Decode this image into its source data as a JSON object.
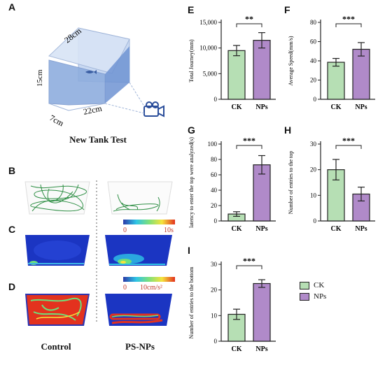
{
  "panel_letters": [
    "A",
    "B",
    "C",
    "D",
    "E",
    "F",
    "G",
    "H",
    "I"
  ],
  "tank": {
    "dim_length": "28cm",
    "dim_bottom": "22cm",
    "dim_height": "15cm",
    "dim_depth": "7cm",
    "title": "New Tank Test"
  },
  "groups": {
    "control": "Control",
    "treated": "PS-NPs"
  },
  "colorbar_time": {
    "min": "0",
    "max": "10s"
  },
  "colorbar_speed": {
    "min": "0",
    "max": "10cm/s²"
  },
  "legend": {
    "items": [
      {
        "label": "CK",
        "color": "#b6dfb4"
      },
      {
        "label": "NPs",
        "color": "#b08ac9"
      }
    ]
  },
  "colors": {
    "ck": "#b6dfb4",
    "nps": "#b08ac9",
    "edge": "#222222"
  },
  "chart_data": [
    {
      "id": "E",
      "type": "bar",
      "categories": [
        "CK",
        "NPs"
      ],
      "values": [
        9500,
        11500
      ],
      "errors": [
        1000,
        1500
      ],
      "ylabel": "Total Journey(mm)",
      "ylim": [
        0,
        15000
      ],
      "yticks": [
        0,
        5000,
        10000,
        15000
      ],
      "ytick_labels": [
        "0",
        "5,000",
        "10,000",
        "15,000"
      ],
      "significance": "**"
    },
    {
      "id": "F",
      "type": "bar",
      "categories": [
        "CK",
        "NPs"
      ],
      "values": [
        38.5,
        52
      ],
      "errors": [
        4,
        7
      ],
      "ylabel": "Average Speed(mm/s)",
      "ylim": [
        0,
        80
      ],
      "yticks": [
        0,
        20,
        40,
        60,
        80
      ],
      "ytick_labels": [
        "0",
        "20",
        "40",
        "60",
        "80"
      ],
      "significance": "***"
    },
    {
      "id": "G",
      "type": "bar",
      "categories": [
        "CK",
        "NPs"
      ],
      "values": [
        9,
        73
      ],
      "errors": [
        3,
        12
      ],
      "ylabel": "latency to enter the top were analyzed(s)",
      "ylim": [
        0,
        100
      ],
      "yticks": [
        0,
        20,
        40,
        60,
        80,
        100
      ],
      "ytick_labels": [
        "0",
        "20",
        "40",
        "60",
        "80",
        "100"
      ],
      "significance": "***"
    },
    {
      "id": "H",
      "type": "bar",
      "categories": [
        "CK",
        "NPs"
      ],
      "values": [
        20,
        10.5
      ],
      "errors": [
        4,
        2.7
      ],
      "ylabel": "Number of entries to the top",
      "ylim": [
        0,
        30
      ],
      "yticks": [
        0,
        10,
        20,
        30
      ],
      "ytick_labels": [
        "0",
        "10",
        "20",
        "30"
      ],
      "significance": "***"
    },
    {
      "id": "I",
      "type": "bar",
      "categories": [
        "CK",
        "NPs"
      ],
      "values": [
        10.5,
        22.5
      ],
      "errors": [
        2,
        1.5
      ],
      "ylabel": "Number of entries to the bottom",
      "ylim": [
        0,
        30
      ],
      "yticks": [
        0,
        10,
        20,
        30
      ],
      "ytick_labels": [
        "0",
        "10",
        "20",
        "30"
      ],
      "significance": "***"
    }
  ]
}
